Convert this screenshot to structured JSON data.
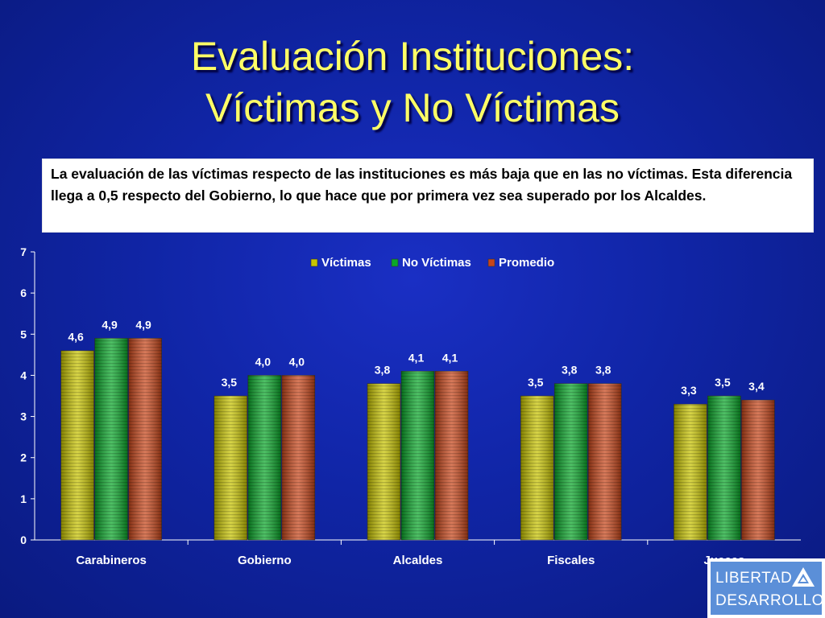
{
  "title": {
    "line1": "Evaluación Instituciones:",
    "line2": "Víctimas y No Víctimas"
  },
  "note": "La evaluación de  las víctimas respecto de las instituciones es más baja que en las no víctimas. Esta diferencia llega a 0,5 respecto del Gobierno, lo que hace que por primera vez sea superado por los Alcaldes.",
  "logo": {
    "line1": "LIBERTAD",
    "line2": "DESARROLLO",
    "icon": "mountain-triangle-icon"
  },
  "colors": {
    "background": "#1025a6",
    "title": "#ffff66",
    "victimas": "#c8c400",
    "no_victimas": "#0aa82a",
    "promedio": "#c8461a"
  },
  "chart_data": {
    "type": "bar",
    "categories": [
      "Carabineros",
      "Gobierno",
      "Alcaldes",
      "Fiscales",
      "Jueces"
    ],
    "series": [
      {
        "name": "Víctimas",
        "values": [
          4.6,
          3.5,
          3.8,
          3.5,
          3.3
        ],
        "labels": [
          "4,6",
          "3,5",
          "3,8",
          "3,5",
          "3,3"
        ]
      },
      {
        "name": "No Víctimas",
        "values": [
          4.9,
          4.0,
          4.1,
          3.8,
          3.5
        ],
        "labels": [
          "4,9",
          "4,0",
          "4,1",
          "3,8",
          "3,5"
        ]
      },
      {
        "name": "Promedio",
        "values": [
          4.9,
          4.0,
          4.1,
          3.8,
          3.4
        ],
        "labels": [
          "4,9",
          "4,0",
          "4,1",
          "3,8",
          "3,4"
        ]
      }
    ],
    "ylim": [
      0,
      7
    ],
    "yticks": [
      "0",
      "1",
      "2",
      "3",
      "4",
      "5",
      "6",
      "7"
    ],
    "legend": "top-center",
    "grid": false
  }
}
